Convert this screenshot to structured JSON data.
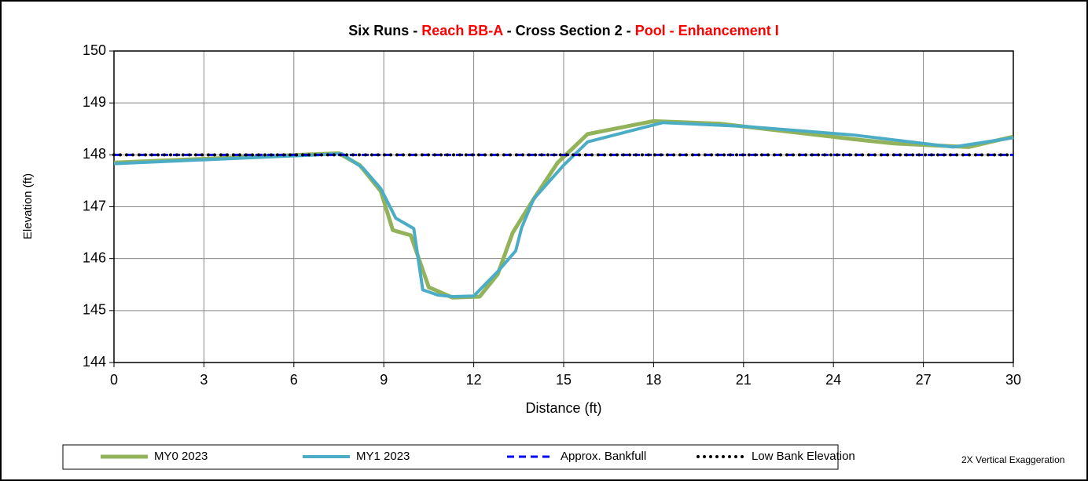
{
  "chart_data": {
    "type": "line",
    "title_parts": [
      {
        "text": "Six Runs - ",
        "color": "#000000"
      },
      {
        "text": "Reach BB-A",
        "color": "#ff0000"
      },
      {
        "text": " - Cross Section 2 - ",
        "color": "#000000"
      },
      {
        "text": "Pool - Enhancement I",
        "color": "#ff0000"
      }
    ],
    "x_label": "Distance (ft)",
    "y_label": "Elevation (ft)",
    "annotation": "2X Vertical Exaggeration",
    "xlim": [
      0,
      30
    ],
    "xticks": [
      0,
      3,
      6,
      9,
      12,
      15,
      18,
      21,
      24,
      27,
      30
    ],
    "ylim": [
      144,
      150
    ],
    "yticks": [
      144,
      145,
      146,
      147,
      148,
      149,
      150
    ],
    "grid": true,
    "legend": "bottom",
    "series": [
      {
        "name": "MY0 2023",
        "color": "#92b35a",
        "dash": "solid",
        "width": 5,
        "x": [
          0,
          7.5,
          8.2,
          8.9,
          9.3,
          9.9,
          10.5,
          11.3,
          12.2,
          12.8,
          13.3,
          14.0,
          14.8,
          15.8,
          18.0,
          20.2,
          24.7,
          26.0,
          28.5,
          30
        ],
        "values": [
          147.85,
          148.03,
          147.8,
          147.3,
          146.55,
          146.45,
          145.45,
          145.25,
          145.27,
          145.7,
          146.5,
          147.15,
          147.85,
          148.4,
          148.65,
          148.6,
          148.3,
          148.22,
          148.15,
          148.35
        ]
      },
      {
        "name": "MY1 2023",
        "color": "#4bacc6",
        "dash": "solid",
        "width": 4,
        "x": [
          0,
          7.6,
          8.3,
          8.9,
          9.4,
          10.0,
          10.3,
          10.8,
          11.3,
          12.0,
          12.8,
          13.4,
          13.6,
          14.0,
          15.0,
          15.8,
          18.3,
          21.0,
          24.7,
          28.0,
          30
        ],
        "values": [
          147.83,
          148.02,
          147.75,
          147.35,
          146.78,
          146.58,
          145.4,
          145.3,
          145.27,
          145.28,
          145.75,
          146.15,
          146.6,
          147.15,
          147.8,
          148.25,
          148.62,
          148.55,
          148.38,
          148.15,
          148.33
        ]
      },
      {
        "name": "Approx. Bankfull",
        "color": "#0000ff",
        "dash": "dashed",
        "width": 3,
        "x": [
          0,
          30
        ],
        "values": [
          148,
          148
        ]
      },
      {
        "name": "Low Bank Elevation",
        "color": "#000000",
        "dash": "dotted",
        "width": 4,
        "x": [
          0,
          30
        ],
        "values": [
          148,
          148
        ]
      }
    ]
  }
}
